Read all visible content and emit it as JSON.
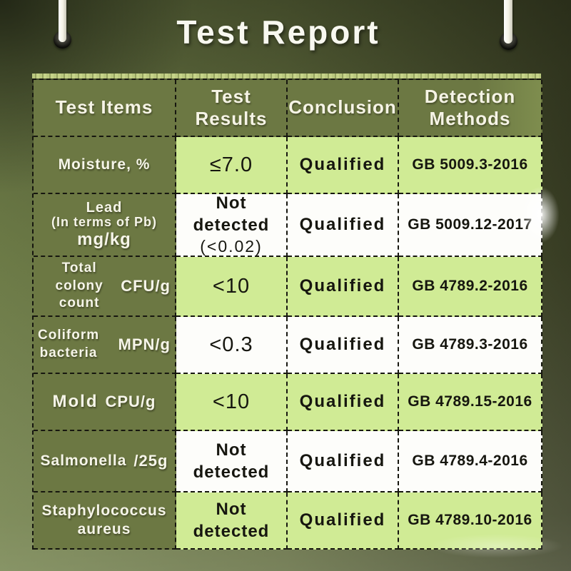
{
  "title": {
    "text": "Test Report"
  },
  "table": {
    "headers": [
      "Test Items",
      "Test Results",
      "Conclusion",
      "Detection Methods"
    ],
    "rows": [
      {
        "name": "Moisture, %",
        "result": "≤7.0",
        "conclusion": "Qualified",
        "method": "GB 5009.3-2016"
      },
      {
        "name_line1": "Lead",
        "name_line2": "(In terms of Pb)",
        "name_line3": "mg/kg",
        "result": "Not detected",
        "result_note": "(<0.02)",
        "conclusion": "Qualified",
        "method": "GB 5009.12-2017"
      },
      {
        "name_line1": "Total colony",
        "name_line2": "count",
        "unit": "CFU/g",
        "result": "<10",
        "conclusion": "Qualified",
        "method": "GB 4789.2-2016"
      },
      {
        "name_line1": "Coliform",
        "name_line2": "bacteria",
        "unit": "MPN/g",
        "result": "<0.3",
        "conclusion": "Qualified",
        "method": "GB 4789.3-2016"
      },
      {
        "name": "Mold",
        "unit": "CPU/g",
        "result": "<10",
        "conclusion": "Qualified",
        "method": "GB 4789.15-2016"
      },
      {
        "name": "Salmonella",
        "unit": "/25g",
        "result": "Not detected",
        "conclusion": "Qualified",
        "method": "GB 4789.4-2016"
      },
      {
        "name_line1": "Staphylococcus",
        "name_line2": "aureus",
        "result": "Not detected",
        "conclusion": "Qualified",
        "method": "GB 4789.10-2016"
      }
    ]
  },
  "colors": {
    "header_olive": "#6c7843",
    "row_green": "#d0eb95",
    "row_white": "#fdfdfa",
    "background_dark": "#3a3f25",
    "background_light": "#71804a",
    "title_text": "#f8f8f0",
    "border": "#16160f"
  }
}
